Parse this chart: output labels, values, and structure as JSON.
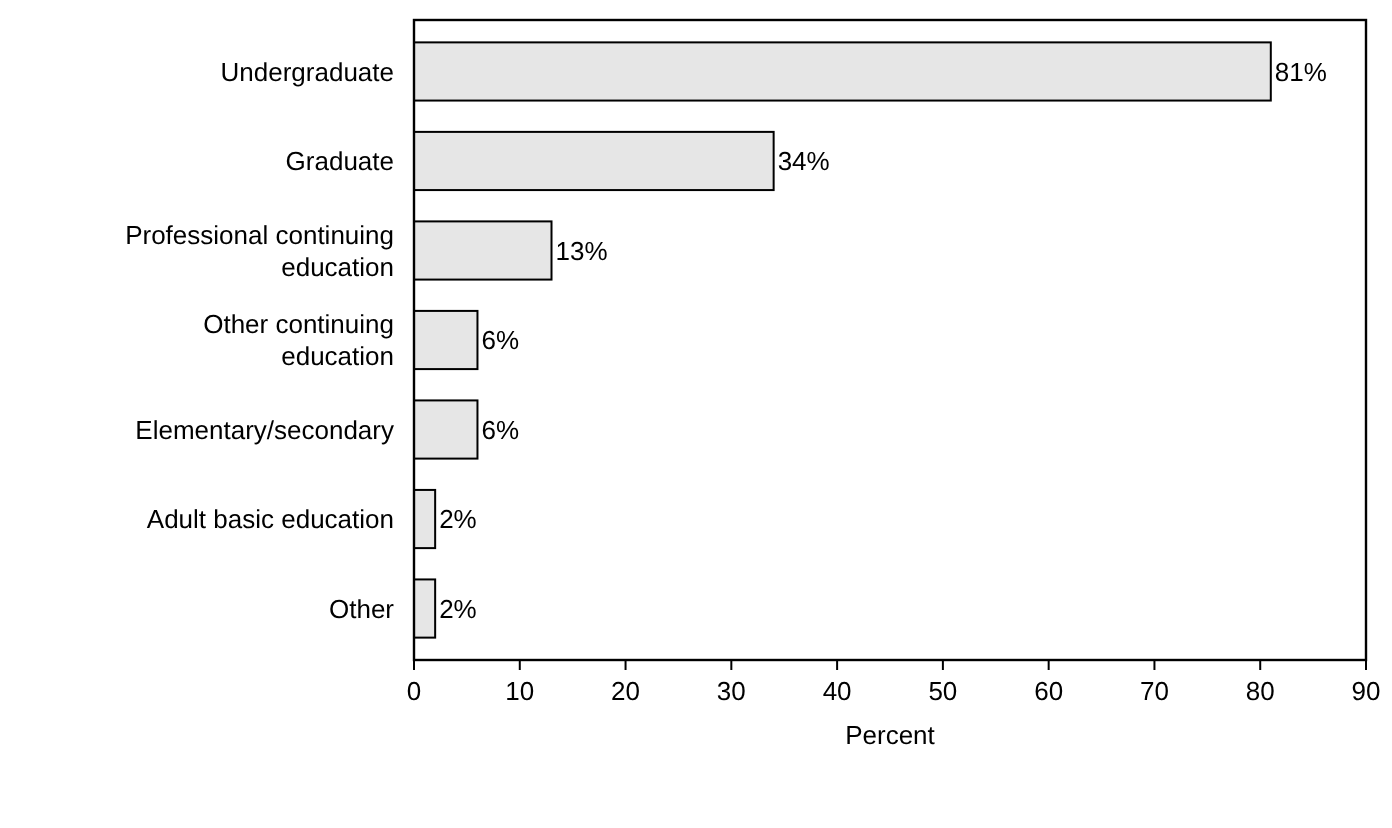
{
  "chart_data": {
    "type": "bar",
    "orientation": "horizontal",
    "xlabel": "Percent",
    "categories": [
      "Undergraduate",
      "Graduate",
      "Professional continuing education",
      "Other continuing education",
      "Elementary/secondary",
      "Adult basic education",
      "Other"
    ],
    "values": [
      81,
      34,
      13,
      6,
      6,
      2,
      2
    ],
    "value_labels": [
      "81%",
      "34%",
      "13%",
      "6%",
      "6%",
      "2%",
      "2%"
    ],
    "color": "#e6e6e6",
    "xlim": [
      0,
      90
    ],
    "xticks": [
      0,
      10,
      20,
      30,
      40,
      50,
      60,
      70,
      80,
      90
    ],
    "grid": false
  }
}
